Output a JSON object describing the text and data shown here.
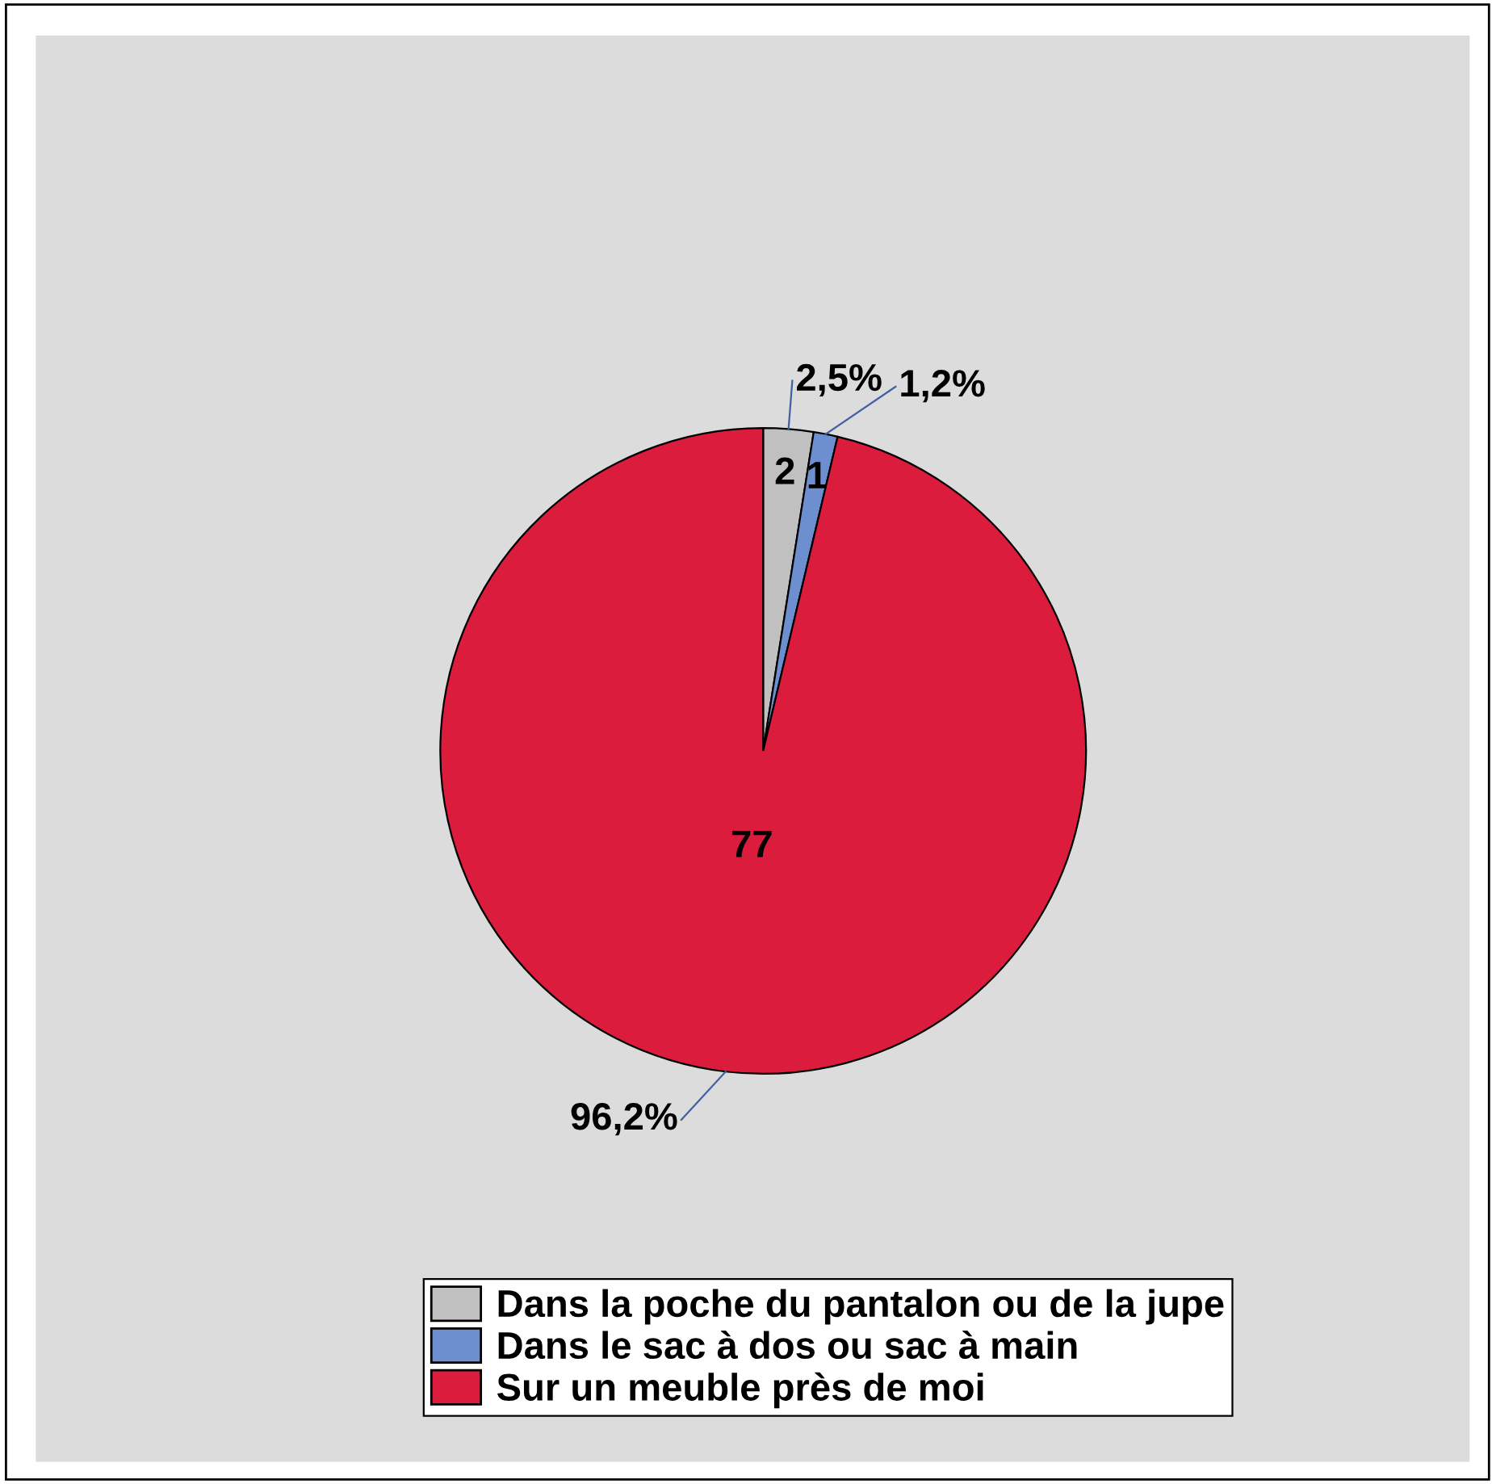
{
  "chart_data": {
    "type": "pie",
    "categories": [
      "Dans la poche du pantalon ou de la jupe",
      "Dans le sac à dos ou sac à main",
      "Sur un meuble près de moi"
    ],
    "values": [
      2.5,
      1.2,
      96.2
    ],
    "colors": [
      "#c0c0c0",
      "#6d8fd0",
      "#dc1c3c"
    ],
    "value_labels": [
      "2,5%",
      "1,2%",
      "96,2%"
    ],
    "annotations": [
      {
        "text": "2",
        "x": "Dans la poche du pantalon ou de la jupe"
      },
      {
        "text": "1",
        "x": "Dans le sac à dos ou sac à main"
      },
      {
        "text": "77",
        "x": "Sur un meuble près de moi"
      }
    ],
    "legend": "bottom"
  }
}
